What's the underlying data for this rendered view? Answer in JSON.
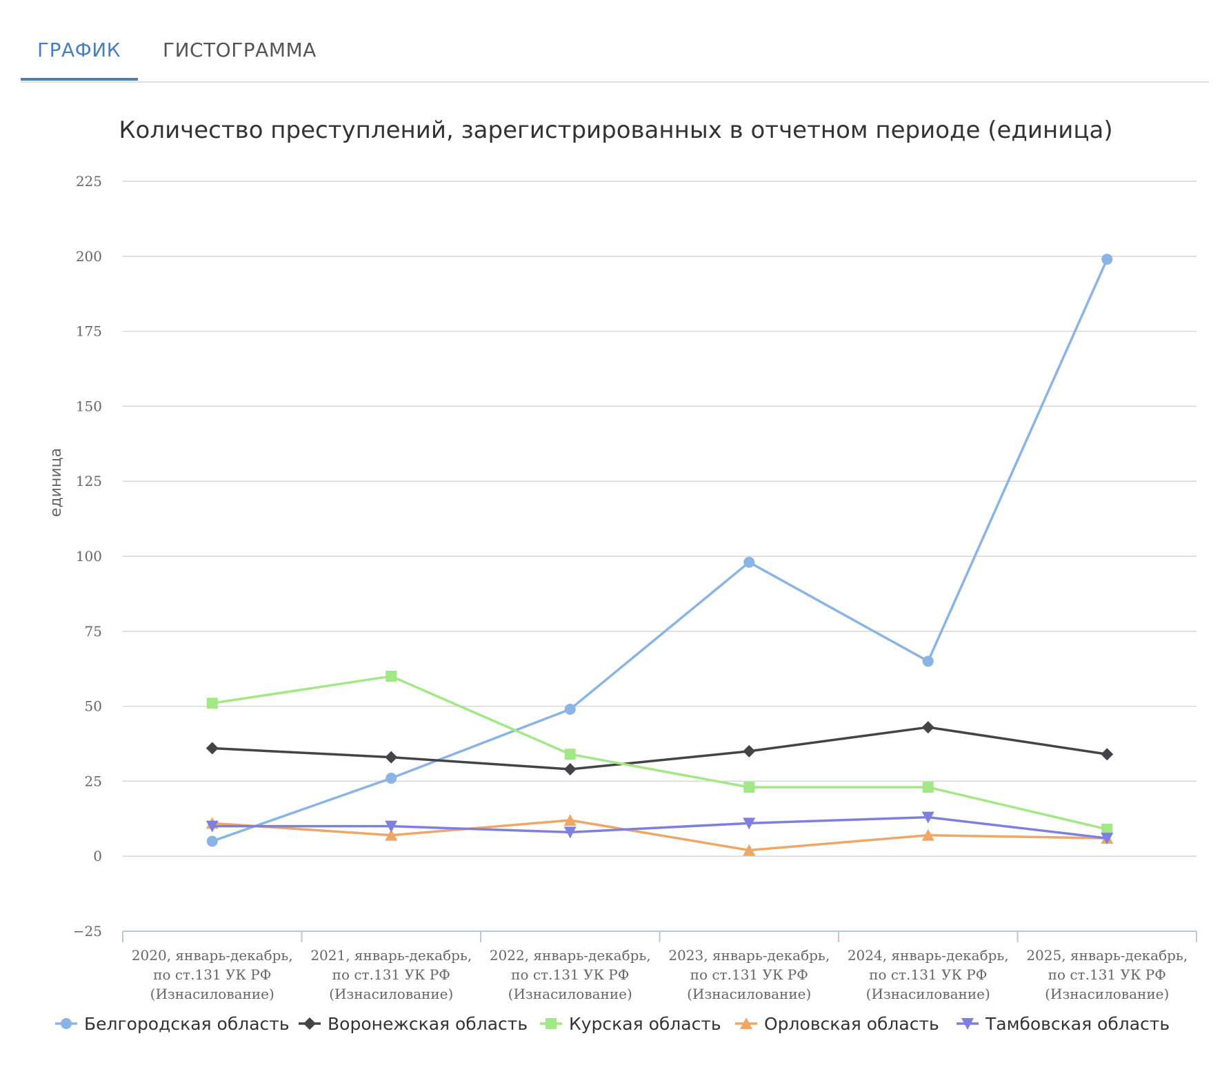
{
  "tabs": [
    {
      "label": "ГРАФИК",
      "active": true
    },
    {
      "label": "ГИСТОГРАММА",
      "active": false
    }
  ],
  "chart_data": {
    "type": "line",
    "title": "Количество преступлений, зарегистрированных в отчетном периоде (единица)",
    "ylabel": "единица",
    "xlabel": "",
    "ylim": [
      -25,
      225
    ],
    "yticks": [
      -25,
      0,
      25,
      50,
      75,
      100,
      125,
      150,
      175,
      200,
      225
    ],
    "grid": true,
    "legend_position": "bottom",
    "categories": [
      [
        "2020, январь-декабрь,",
        "по ст.131 УК РФ",
        "(Изнасилование)"
      ],
      [
        "2021, январь-декабрь,",
        "по ст.131 УК РФ",
        "(Изнасилование)"
      ],
      [
        "2022, январь-декабрь,",
        "по ст.131 УК РФ",
        "(Изнасилование)"
      ],
      [
        "2023, январь-декабрь,",
        "по ст.131 УК РФ",
        "(Изнасилование)"
      ],
      [
        "2024, январь-декабрь,",
        "по ст.131 УК РФ",
        "(Изнасилование)"
      ],
      [
        "2025, январь-декабрь,",
        "по ст.131 УК РФ",
        "(Изнасилование)"
      ]
    ],
    "series": [
      {
        "name": "Белгородская область",
        "color": "#8ab4e3",
        "marker": "circle",
        "values": [
          5,
          26,
          49,
          98,
          65,
          199
        ]
      },
      {
        "name": "Воронежская область",
        "color": "#434348",
        "marker": "diamond",
        "values": [
          36,
          33,
          29,
          35,
          43,
          34
        ]
      },
      {
        "name": "Курская область",
        "color": "#a3e887",
        "marker": "square",
        "values": [
          51,
          60,
          34,
          23,
          23,
          9
        ]
      },
      {
        "name": "Орловская область",
        "color": "#eda766",
        "marker": "triangle",
        "values": [
          11,
          7,
          12,
          2,
          7,
          6
        ]
      },
      {
        "name": "Тамбовская область",
        "color": "#7f7fdf",
        "marker": "triangle-down",
        "values": [
          10,
          10,
          8,
          11,
          13,
          6
        ]
      }
    ]
  }
}
